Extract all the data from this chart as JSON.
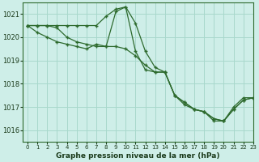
{
  "title": "Graphe pression niveau de la mer (hPa)",
  "background_color": "#ceeee8",
  "grid_color": "#a8d8cc",
  "line_color": "#2d6a2d",
  "xlim": [
    -0.5,
    23
  ],
  "ylim": [
    1015.5,
    1021.5
  ],
  "yticks": [
    1016,
    1017,
    1018,
    1019,
    1020,
    1021
  ],
  "xticks": [
    0,
    1,
    2,
    3,
    4,
    5,
    6,
    7,
    8,
    9,
    10,
    11,
    12,
    13,
    14,
    15,
    16,
    17,
    18,
    19,
    20,
    21,
    22,
    23
  ],
  "series": [
    {
      "x": [
        0,
        1,
        2,
        3,
        4,
        5,
        6,
        7,
        8,
        9,
        10,
        11,
        12,
        13,
        14,
        15,
        16,
        17,
        18,
        19,
        20,
        21,
        22,
        23
      ],
      "y": [
        1020.5,
        1020.5,
        1020.5,
        1020.5,
        1020.5,
        1020.5,
        1020.5,
        1020.5,
        1020.9,
        1021.2,
        1021.3,
        1020.6,
        1019.4,
        1018.7,
        1018.5,
        1017.5,
        1017.1,
        1016.9,
        1016.8,
        1016.4,
        1016.4,
        1017.0,
        1017.4,
        1017.4
      ]
    },
    {
      "x": [
        0,
        1,
        2,
        3,
        4,
        5,
        6,
        7,
        8,
        9,
        10,
        11,
        12,
        13,
        14,
        15,
        16,
        17,
        18,
        19,
        20,
        21,
        22,
        23
      ],
      "y": [
        1020.5,
        1020.2,
        1020.0,
        1019.8,
        1019.7,
        1019.6,
        1019.5,
        1019.7,
        1019.6,
        1021.1,
        1021.3,
        1019.4,
        1018.6,
        1018.5,
        1018.5,
        1017.5,
        1017.2,
        1016.9,
        1016.8,
        1016.5,
        1016.4,
        1016.9,
        1017.3,
        1017.4
      ]
    },
    {
      "x": [
        0,
        1,
        2,
        3,
        4,
        5,
        6,
        7,
        8,
        9,
        10,
        11,
        12,
        13,
        14,
        15,
        16,
        17,
        18,
        19,
        20,
        21,
        22,
        23
      ],
      "y": [
        1020.5,
        1020.5,
        1020.5,
        1020.4,
        1020.0,
        1019.8,
        1019.7,
        1019.6,
        1019.6,
        1019.6,
        1019.5,
        1019.2,
        1018.8,
        1018.5,
        1018.5,
        1017.5,
        1017.2,
        1016.9,
        1016.8,
        1016.5,
        1016.4,
        1016.9,
        1017.3,
        1017.4
      ]
    }
  ]
}
